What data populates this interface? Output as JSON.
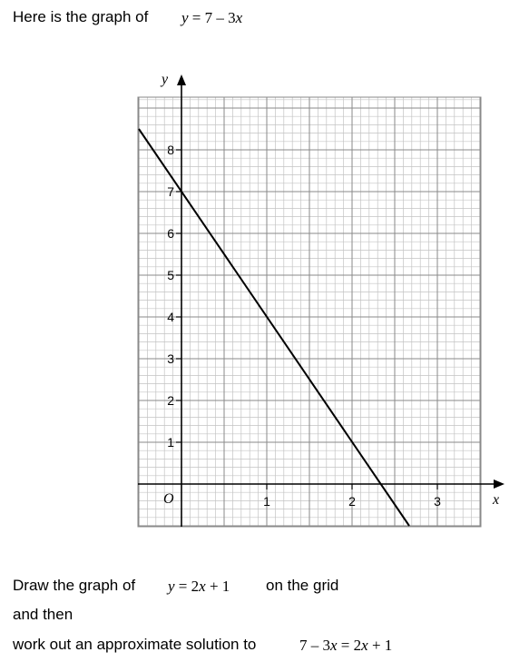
{
  "intro": {
    "text": "Here is the graph of",
    "equation": {
      "lhs": "y",
      "eq": " = 7 – 3",
      "var": "x"
    }
  },
  "question": {
    "line1_text": "Draw the graph of",
    "line1_equation": {
      "lhs": "y",
      "eq": " = 2",
      "var": "x",
      "rest": " + 1"
    },
    "line1_tail": "on the grid",
    "line2": "and then",
    "line3_text": "work out an approximate solution to",
    "line3_equation": {
      "pre": "7 – 3",
      "var1": "x",
      "mid": " = 2",
      "var2": "x",
      "rest": " + 1"
    }
  },
  "chart_data": {
    "type": "line",
    "xlabel": "x",
    "ylabel": "y",
    "origin_label": "O",
    "xlim": [
      -0.5,
      3.5
    ],
    "ylim": [
      -1,
      9.5
    ],
    "grid": true,
    "x_ticks": [
      "1",
      "2",
      "3"
    ],
    "y_ticks": [
      "1",
      "2",
      "3",
      "4",
      "5",
      "6",
      "7",
      "8"
    ],
    "series": [
      {
        "equation": "y = 7 – 3x",
        "x": [
          -0.5,
          2.67
        ],
        "y": [
          8.5,
          -1
        ],
        "color": "#000000"
      }
    ]
  }
}
